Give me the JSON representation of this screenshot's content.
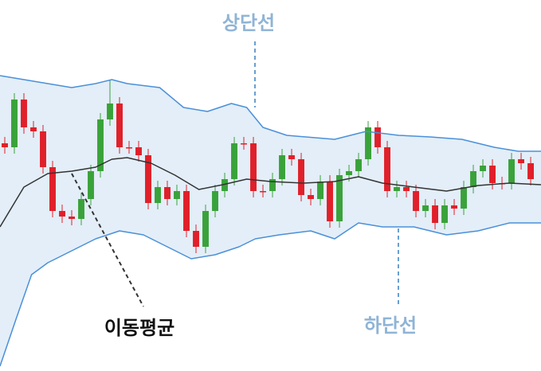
{
  "chart_data": {
    "type": "candlestick",
    "xlim": [
      -0.5,
      56.08
    ],
    "ylim": [
      0,
      466
    ],
    "up_color": "#3aa23a",
    "down_color": "#e0202a",
    "band_fill": "#e3eef8",
    "open": [
      286,
      281,
      341,
      306,
      301,
      256,
      201,
      194,
      191,
      216,
      251,
      316,
      336,
      281,
      281,
      271,
      211,
      231,
      216,
      226,
      176,
      156,
      201,
      226,
      241,
      286,
      286,
      226,
      226,
      241,
      271,
      266,
      221,
      216,
      238,
      188,
      246,
      251,
      266,
      306,
      281,
      226,
      231,
      226,
      201,
      208,
      186,
      208,
      204,
      231,
      251,
      258,
      236,
      236,
      266,
      261
    ],
    "high": [
      294,
      349,
      349,
      314,
      309,
      264,
      209,
      202,
      224,
      259,
      324,
      366,
      344,
      289,
      289,
      279,
      239,
      239,
      234,
      234,
      184,
      209,
      234,
      249,
      294,
      294,
      294,
      234,
      249,
      279,
      279,
      274,
      229,
      246,
      246,
      254,
      259,
      274,
      314,
      314,
      289,
      239,
      239,
      234,
      216,
      216,
      216,
      216,
      239,
      259,
      266,
      266,
      244,
      274,
      274,
      269
    ],
    "low": [
      273,
      273,
      298,
      293,
      248,
      193,
      186,
      183,
      183,
      208,
      243,
      308,
      273,
      273,
      263,
      203,
      203,
      208,
      208,
      168,
      148,
      148,
      193,
      218,
      233,
      278,
      218,
      218,
      218,
      233,
      258,
      213,
      208,
      208,
      180,
      180,
      238,
      243,
      258,
      273,
      218,
      218,
      218,
      193,
      193,
      178,
      178,
      196,
      196,
      223,
      243,
      228,
      228,
      228,
      253,
      233
    ],
    "close": [
      281,
      341,
      306,
      301,
      256,
      201,
      194,
      191,
      216,
      251,
      316,
      336,
      281,
      281,
      271,
      211,
      231,
      216,
      226,
      176,
      156,
      201,
      226,
      241,
      286,
      286,
      226,
      226,
      241,
      271,
      266,
      221,
      216,
      238,
      188,
      246,
      251,
      266,
      306,
      281,
      226,
      231,
      226,
      201,
      208,
      186,
      208,
      204,
      231,
      251,
      258,
      236,
      236,
      266,
      261,
      241
    ],
    "series": [
      {
        "name": "상단선",
        "color": "#4a90d9",
        "x": [
          -0.5,
          2,
          4.5,
          7,
          9.5,
          11.2,
          12.8,
          16.2,
          18.7,
          21.2,
          23.7,
          25.3,
          27,
          29.5,
          34.5,
          37.8,
          41.2,
          44.5,
          47.8,
          51.2,
          53.7,
          56.08
        ],
        "values": [
          371,
          366,
          361,
          356,
          361,
          366,
          361,
          356,
          331,
          326,
          336,
          331,
          306,
          296,
          291,
          301,
          296,
          294,
          291,
          281,
          276,
          276
        ]
      },
      {
        "name": "이동평균",
        "color": "#333333",
        "x": [
          -0.5,
          2,
          4.5,
          7,
          9.5,
          11.2,
          12.8,
          15.3,
          17.8,
          20.3,
          22.8,
          25.3,
          27.8,
          31.2,
          34.5,
          37,
          39.5,
          42.8,
          46.2,
          49.5,
          52.8,
          56.08
        ],
        "values": [
          181,
          231,
          248,
          251,
          256,
          266,
          268,
          261,
          246,
          228,
          234,
          241,
          238,
          236,
          238,
          244,
          236,
          231,
          226,
          233,
          236,
          234
        ]
      },
      {
        "name": "하단선",
        "color": "#4a90d9",
        "x": [
          -0.5,
          1.2,
          2.8,
          4.5,
          7,
          9.5,
          12,
          14.5,
          17,
          19.5,
          22,
          24.5,
          26.2,
          28.7,
          32,
          34.5,
          37,
          39.5,
          42.8,
          46.2,
          49.5,
          52.8,
          56.08
        ],
        "values": [
          6,
          66,
          121,
          136,
          151,
          166,
          176,
          171,
          156,
          141,
          146,
          156,
          166,
          171,
          176,
          166,
          186,
          181,
          181,
          171,
          176,
          186,
          186
        ]
      }
    ]
  }
}
